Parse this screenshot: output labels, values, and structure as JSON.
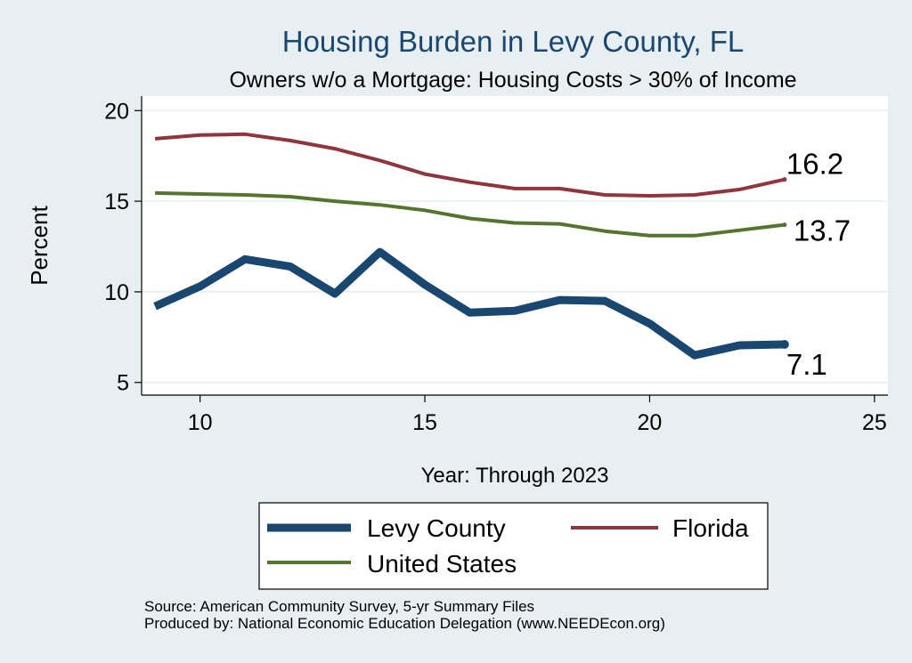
{
  "chart_data": {
    "type": "line",
    "title": "Housing Burden in Levy County, FL",
    "subtitle": "Owners w/o a Mortgage: Housing Costs > 30% of Income",
    "xlabel": "Year: Through 2023",
    "ylabel": "Percent",
    "xlim": [
      8.7,
      25.3
    ],
    "ylim": [
      4.3,
      20.8
    ],
    "xticks": [
      10,
      15,
      20,
      25
    ],
    "yticks": [
      5,
      10,
      15,
      20
    ],
    "grid": true,
    "legend_position": "bottom",
    "x": [
      9,
      10,
      11,
      12,
      13,
      14,
      15,
      16,
      17,
      18,
      19,
      20,
      21,
      22,
      23
    ],
    "series": [
      {
        "name": "Levy County",
        "color": "#1a476f",
        "values": [
          9.2,
          10.3,
          11.8,
          11.4,
          9.9,
          12.2,
          10.4,
          8.85,
          8.95,
          9.55,
          9.5,
          8.25,
          6.5,
          7.05,
          7.1
        ],
        "end_label": "7.1"
      },
      {
        "name": "Florida",
        "color": "#90353b",
        "values": [
          18.45,
          18.65,
          18.7,
          18.35,
          17.9,
          17.25,
          16.5,
          16.05,
          15.7,
          15.7,
          15.35,
          15.3,
          15.35,
          15.65,
          16.2
        ],
        "end_label": "16.2"
      },
      {
        "name": "United States",
        "color": "#55752f",
        "values": [
          15.45,
          15.4,
          15.35,
          15.25,
          15.0,
          14.8,
          14.5,
          14.05,
          13.8,
          13.75,
          13.35,
          13.1,
          13.1,
          13.4,
          13.7
        ],
        "end_label": "13.7"
      }
    ]
  },
  "source": {
    "line1": "Source: American Community Survey, 5-yr Summary Files",
    "line2": "Produced by: National Economic Education Delegation (www.NEEDEcon.org)"
  }
}
